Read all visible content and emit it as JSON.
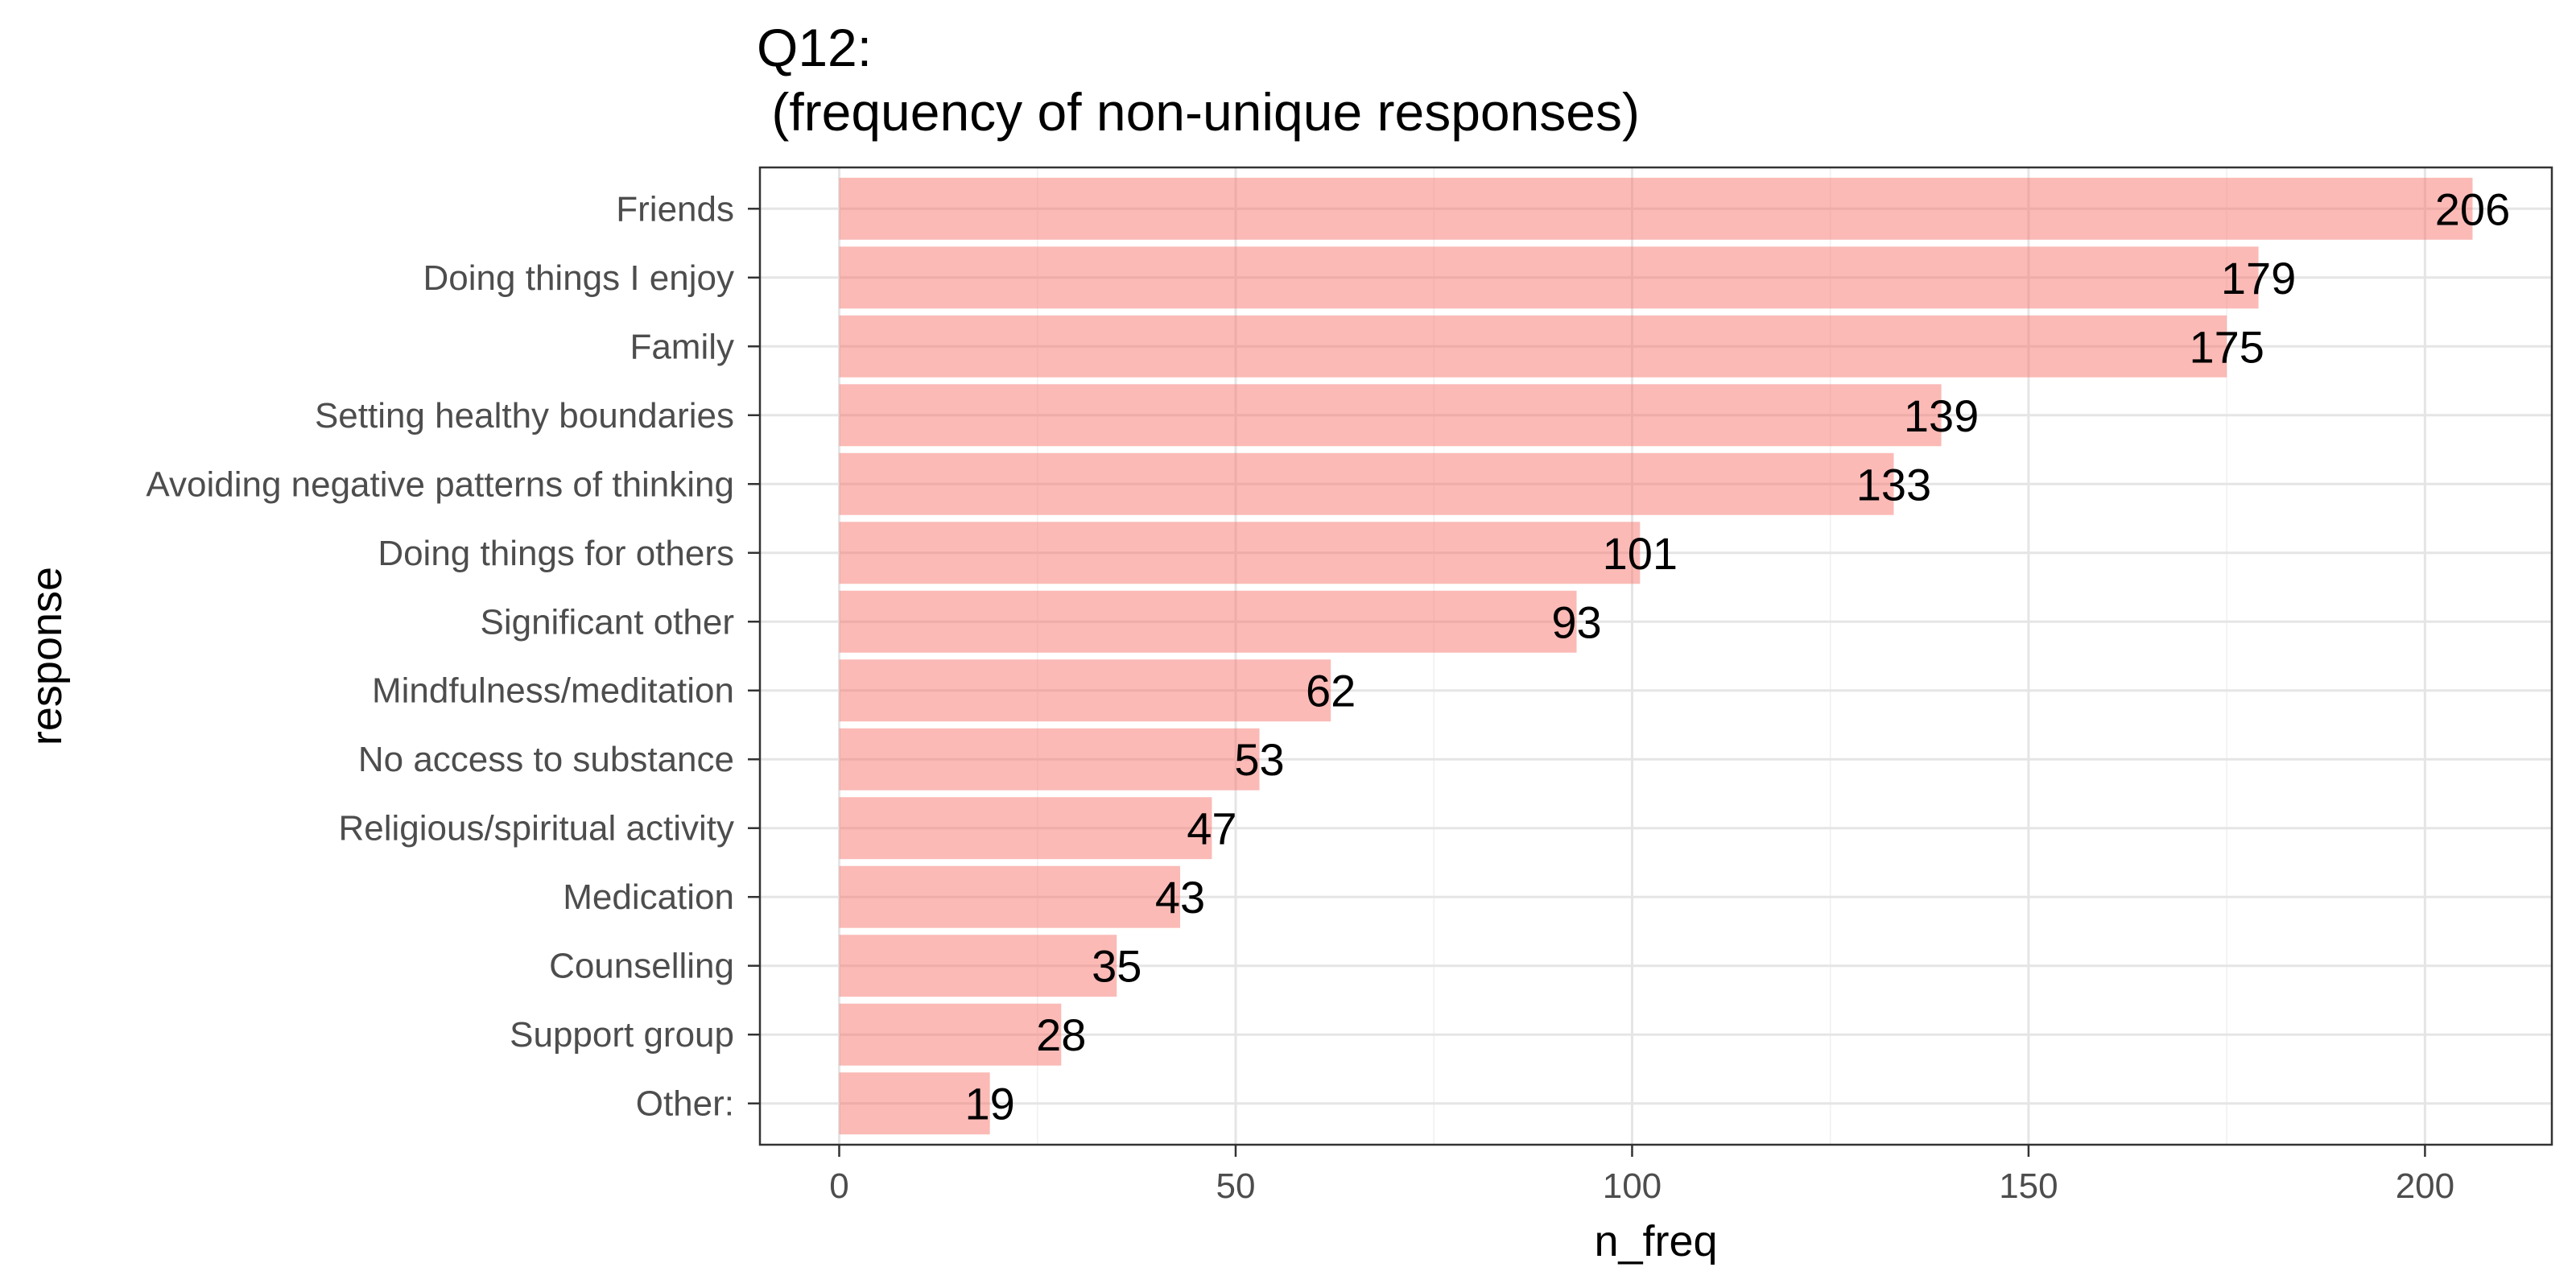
{
  "chart_data": {
    "type": "bar",
    "orientation": "horizontal",
    "title_line1": "Q12:",
    "title_line2": " (frequency of non-unique responses)",
    "xlabel": "n_freq",
    "ylabel": "response",
    "xlim": [
      -10,
      216
    ],
    "x_ticks": [
      0,
      50,
      100,
      150,
      200
    ],
    "x_tick_labels": [
      "0",
      "50",
      "100",
      "150",
      "200"
    ],
    "grid": true,
    "legend": "none",
    "bar_color": "#f8766d",
    "categories": [
      "Friends",
      "Doing things I enjoy",
      "Family",
      "Setting healthy boundaries",
      "Avoiding negative patterns of thinking",
      "Doing things for others",
      "Significant other",
      "Mindfulness/meditation",
      "No access to substance",
      "Religious/spiritual activity",
      "Medication",
      "Counselling",
      "Support group",
      "Other:"
    ],
    "values": [
      206,
      179,
      175,
      139,
      133,
      101,
      93,
      62,
      53,
      47,
      43,
      35,
      28,
      19
    ],
    "value_labels": [
      "206",
      "179",
      "175",
      "139",
      "133",
      "101",
      "93",
      "62",
      "53",
      "47",
      "43",
      "35",
      "28",
      "19"
    ]
  }
}
